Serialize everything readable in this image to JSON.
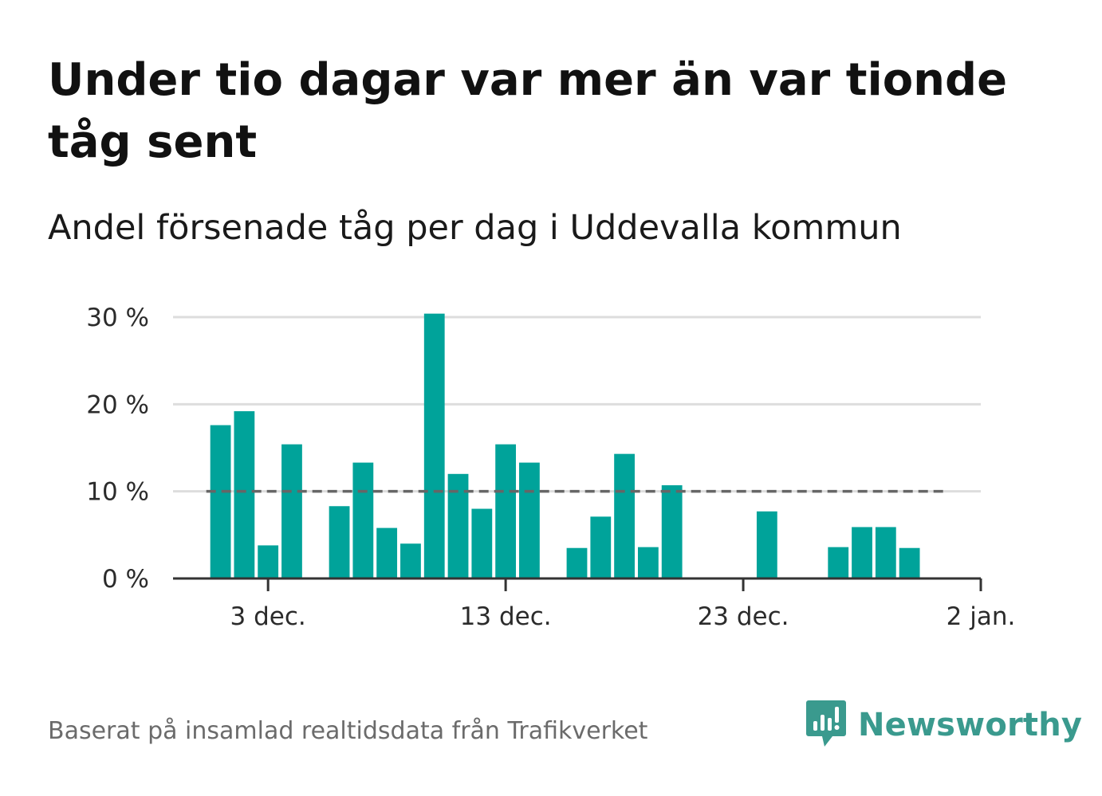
{
  "title": "Under tio dagar var mer än var tionde tåg sent",
  "subtitle": "Andel försenade tåg per dag i Uddevalla kommun",
  "source": "Baserat på insamlad realtidsdata från Trafikverket",
  "brand": {
    "name": "Newsworthy",
    "icon": "newsworthy-logo-icon",
    "color": "#3a9a8e"
  },
  "colors": {
    "bar": "#00a39a",
    "reference_line": "#666666",
    "grid": "#dddddd",
    "axis": "#333333"
  },
  "chart_data": {
    "type": "bar",
    "x_type": "date",
    "x": [
      "2023-12-01",
      "2023-12-02",
      "2023-12-03",
      "2023-12-04",
      "2023-12-05",
      "2023-12-06",
      "2023-12-07",
      "2023-12-08",
      "2023-12-09",
      "2023-12-10",
      "2023-12-11",
      "2023-12-12",
      "2023-12-13",
      "2023-12-14",
      "2023-12-15",
      "2023-12-16",
      "2023-12-17",
      "2023-12-18",
      "2023-12-19",
      "2023-12-20",
      "2023-12-21",
      "2023-12-22",
      "2023-12-23",
      "2023-12-24",
      "2023-12-25",
      "2023-12-26",
      "2023-12-27",
      "2023-12-28",
      "2023-12-29",
      "2023-12-30",
      "2023-12-31"
    ],
    "values": [
      17.6,
      19.2,
      3.8,
      15.4,
      0,
      8.3,
      13.3,
      5.8,
      4.0,
      30.4,
      12.0,
      8.0,
      15.4,
      13.3,
      0,
      3.5,
      7.1,
      14.3,
      3.6,
      10.7,
      0,
      0,
      0,
      7.7,
      0,
      0,
      3.6,
      5.9,
      5.9,
      3.5,
      0
    ],
    "unit": "%",
    "reference_line": 10,
    "ylim": [
      0,
      30
    ],
    "y_ticks": [
      0,
      10,
      20,
      30
    ],
    "y_tick_labels": [
      "0 %",
      "10 %",
      "20 %",
      "30 %"
    ],
    "x_ticks": [
      "2023-12-03",
      "2023-12-13",
      "2023-12-23",
      "2024-01-02"
    ],
    "x_tick_labels": [
      "3 dec.",
      "13 dec.",
      "23 dec.",
      "2 jan."
    ],
    "x_range": [
      "2023-11-29",
      "2024-01-02"
    ],
    "grid": true,
    "legend": "none"
  }
}
